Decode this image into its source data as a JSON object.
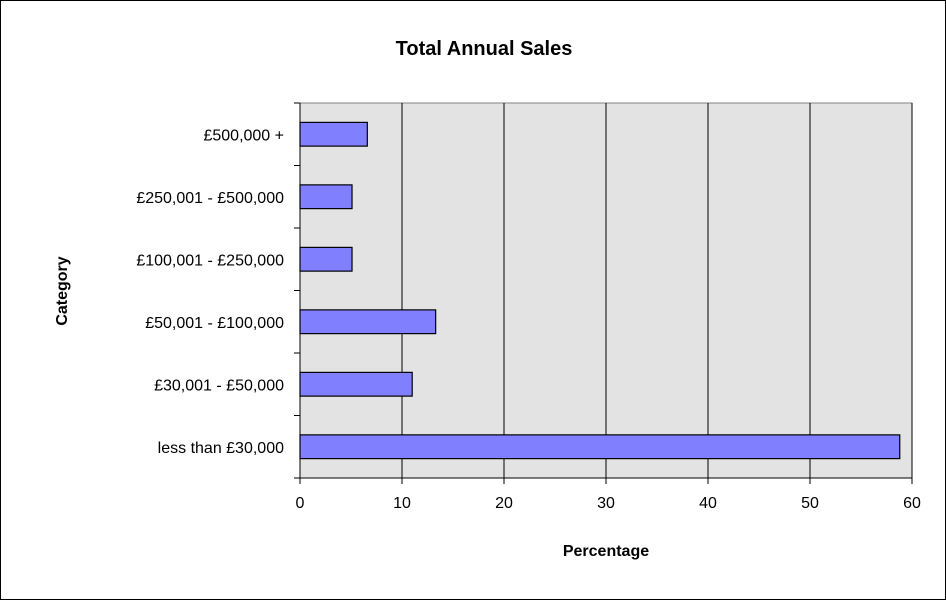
{
  "chart_data": {
    "type": "bar",
    "orientation": "horizontal",
    "title": "Total Annual Sales",
    "xlabel": "Percentage",
    "ylabel": "Category",
    "categories": [
      "less than £30,000",
      "£30,001 - £50,000",
      "£50,001 - £100,000",
      "£100,001 - £250,000",
      "£250,001 - £500,000",
      "£500,000 +"
    ],
    "values": [
      58.8,
      11.0,
      13.3,
      5.1,
      5.1,
      6.6
    ],
    "xlim": [
      0,
      60
    ],
    "xticks": [
      "0",
      "10",
      "20",
      "30",
      "40",
      "50",
      "60"
    ],
    "grid": "vertical",
    "legend": "none",
    "colors": {
      "bar_fill": "#8080ff",
      "plot_background": "#e3e3e3",
      "gridline": "#000000"
    }
  }
}
